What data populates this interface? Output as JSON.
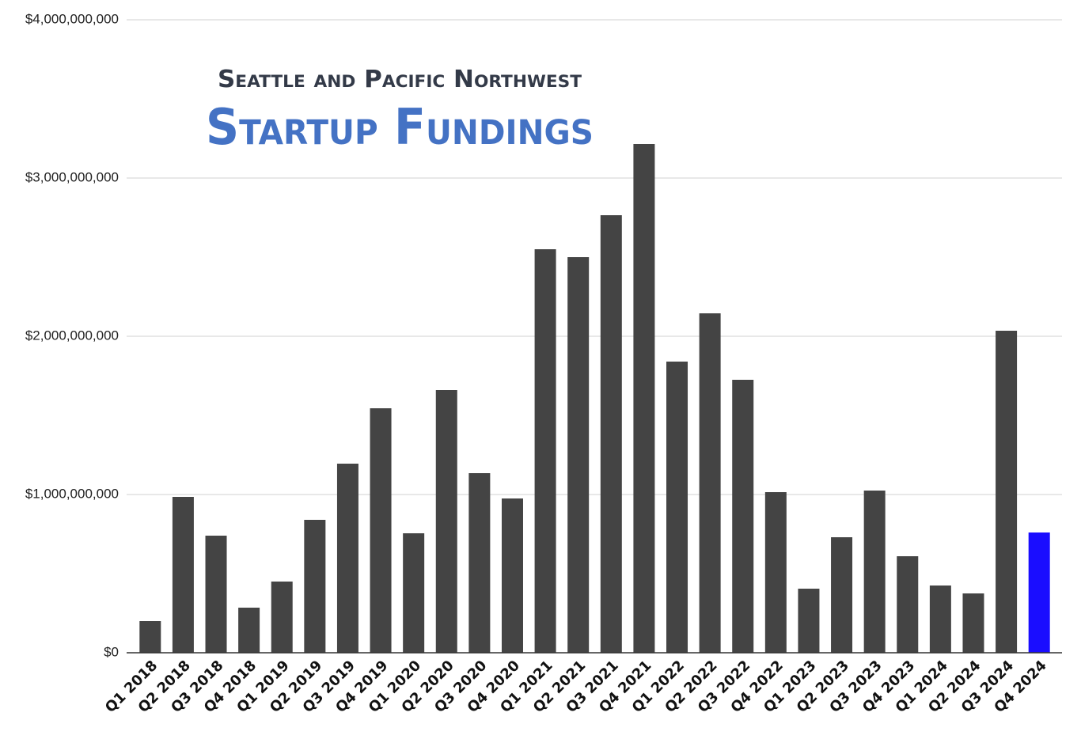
{
  "chart_data": {
    "type": "bar",
    "title": "Seattle and Pacific Northwest",
    "subtitle": "Startup Fundings",
    "categories": [
      "Q1 2018",
      "Q2 2018",
      "Q3 2018",
      "Q4 2018",
      "Q1 2019",
      "Q2 2019",
      "Q3 2019",
      "Q4 2019",
      "Q1 2020",
      "Q2 2020",
      "Q3 2020",
      "Q4 2020",
      "Q1 2021",
      "Q2 2021",
      "Q3 2021",
      "Q4 2021",
      "Q1 2022",
      "Q2 2022",
      "Q3 2022",
      "Q4 2022",
      "Q1 2023",
      "Q2 2023",
      "Q3 2023",
      "Q4 2023",
      "Q1 2024",
      "Q2 2024",
      "Q3 2024",
      "Q4 2024"
    ],
    "values": [
      200000000,
      985000000,
      740000000,
      285000000,
      450000000,
      840000000,
      1195000000,
      1545000000,
      755000000,
      1660000000,
      1135000000,
      975000000,
      2550000000,
      2500000000,
      2765000000,
      3215000000,
      1840000000,
      2145000000,
      1725000000,
      1015000000,
      405000000,
      730000000,
      1025000000,
      610000000,
      425000000,
      375000000,
      2035000000,
      760000000
    ],
    "colors": [
      "#444444",
      "#444444",
      "#444444",
      "#444444",
      "#444444",
      "#444444",
      "#444444",
      "#444444",
      "#444444",
      "#444444",
      "#444444",
      "#444444",
      "#444444",
      "#444444",
      "#444444",
      "#444444",
      "#444444",
      "#444444",
      "#444444",
      "#444444",
      "#444444",
      "#444444",
      "#444444",
      "#444444",
      "#444444",
      "#444444",
      "#444444",
      "#1a0dff"
    ],
    "ylim": [
      0,
      4000000000
    ],
    "yticks": [
      {
        "value": 0,
        "label": "$0"
      },
      {
        "value": 1000000000,
        "label": "$1,000,000,000"
      },
      {
        "value": 2000000000,
        "label": "$2,000,000,000"
      },
      {
        "value": 3000000000,
        "label": "$3,000,000,000"
      },
      {
        "value": 4000000000,
        "label": "$4,000,000,000"
      }
    ],
    "grid": true
  }
}
